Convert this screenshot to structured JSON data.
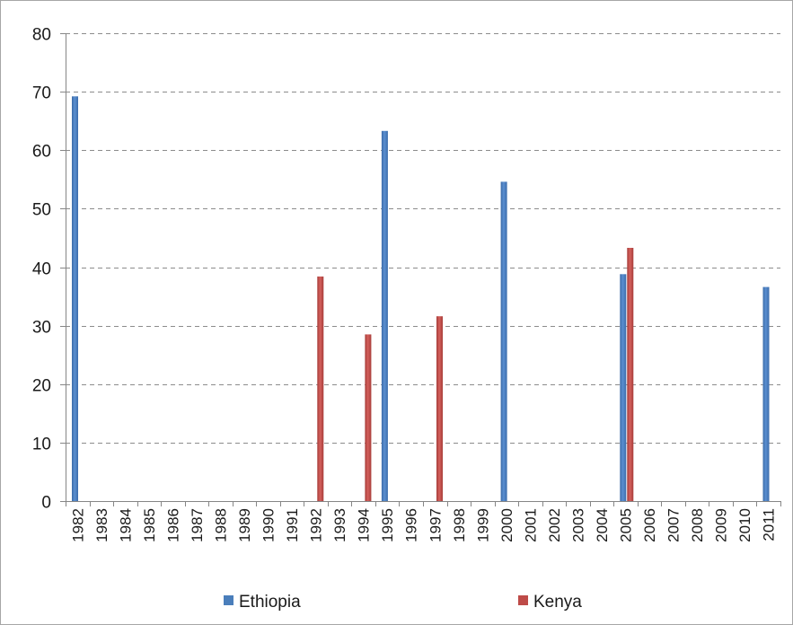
{
  "chart_data": {
    "type": "bar",
    "title": "",
    "xlabel": "",
    "ylabel": "",
    "ylim": [
      0,
      80
    ],
    "yticks": [
      0,
      10,
      20,
      30,
      40,
      50,
      60,
      70,
      80
    ],
    "grid": "horizontal dashed",
    "legend_position": "bottom",
    "categories": [
      "1982",
      "1983",
      "1984",
      "1985",
      "1986",
      "1987",
      "1988",
      "1989",
      "1990",
      "1991",
      "1992",
      "1993",
      "1994",
      "1995",
      "1996",
      "1997",
      "1998",
      "1999",
      "2000",
      "2001",
      "2002",
      "2003",
      "2004",
      "2005",
      "2006",
      "2007",
      "2008",
      "2009",
      "2010",
      "2011"
    ],
    "series": [
      {
        "name": "Ethiopia",
        "color": "#4a7ebb",
        "values": [
          69.2,
          null,
          null,
          null,
          null,
          null,
          null,
          null,
          null,
          null,
          null,
          null,
          null,
          63.3,
          null,
          null,
          null,
          null,
          54.6,
          null,
          null,
          null,
          null,
          38.8,
          null,
          null,
          null,
          null,
          null,
          36.6
        ]
      },
      {
        "name": "Kenya",
        "color": "#be4b48",
        "values": [
          null,
          null,
          null,
          null,
          null,
          null,
          null,
          null,
          null,
          null,
          38.4,
          null,
          28.5,
          null,
          null,
          31.6,
          null,
          null,
          null,
          null,
          null,
          null,
          null,
          43.3,
          null,
          null,
          null,
          null,
          null,
          null
        ]
      }
    ]
  }
}
